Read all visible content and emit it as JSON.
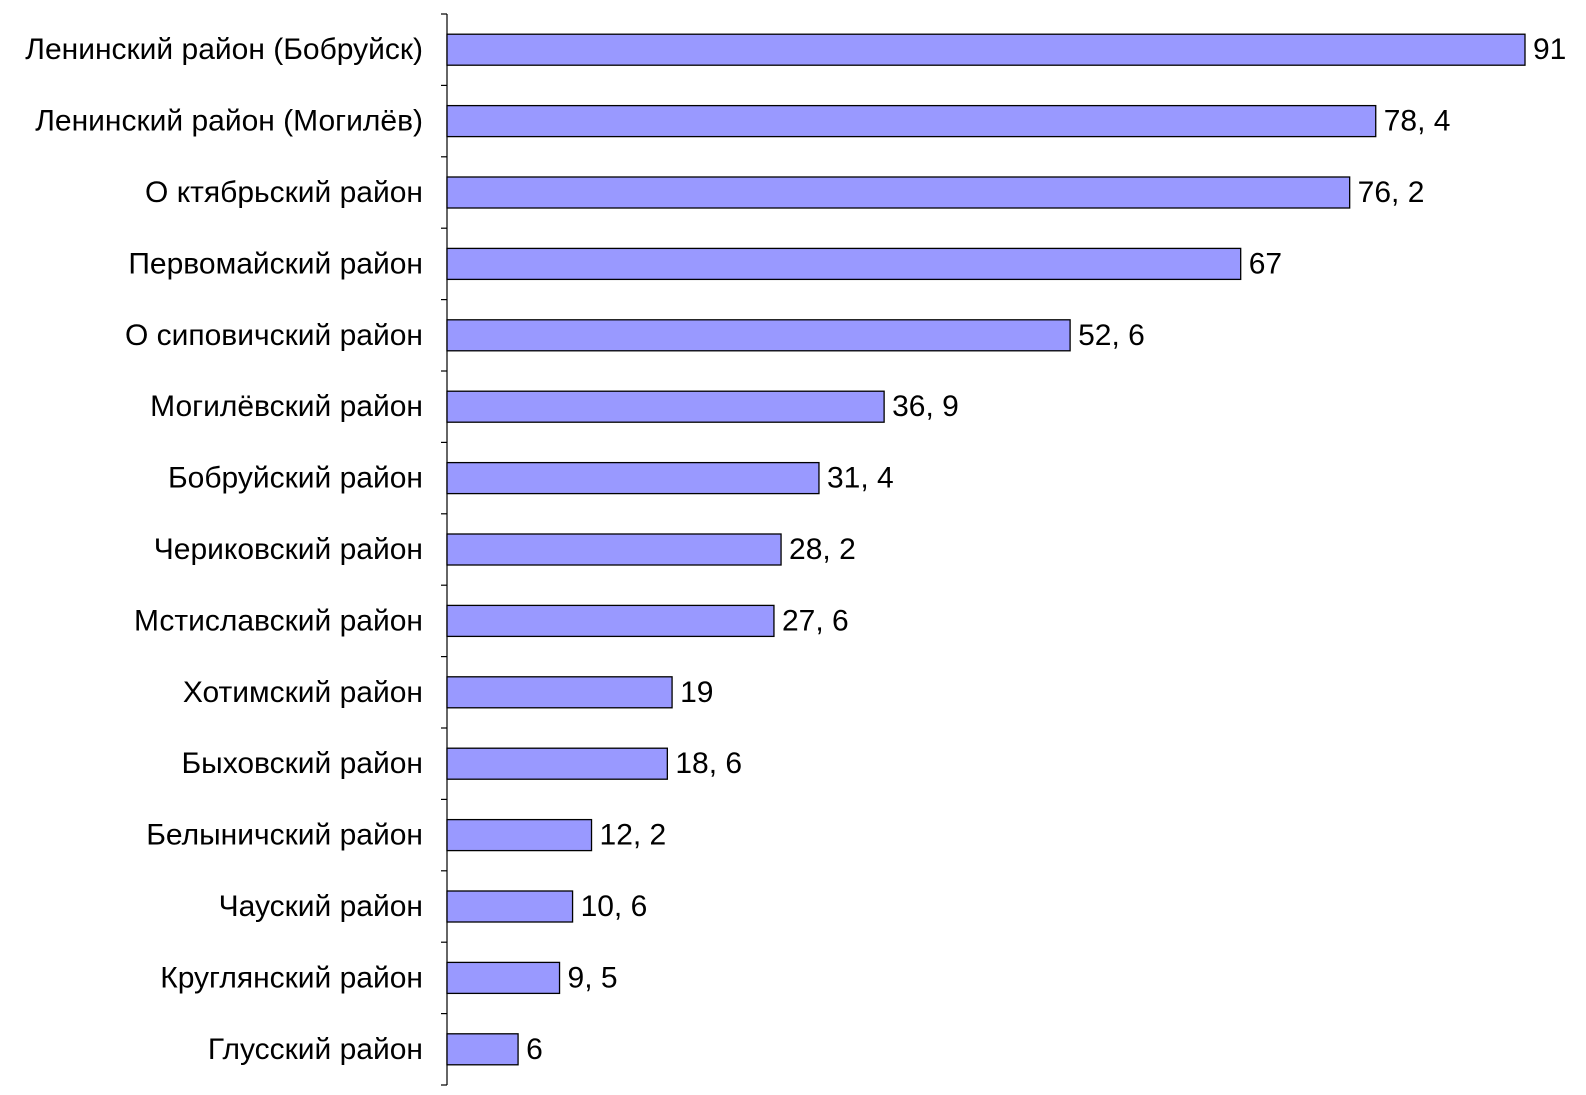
{
  "chart_data": {
    "type": "bar",
    "orientation": "horizontal",
    "title": "",
    "xlabel": "",
    "ylabel": "",
    "xlim": [
      0,
      91
    ],
    "grid": false,
    "legend": false,
    "categories": [
      "Ленинский район (Бобруйск)",
      "Ленинский район (Могилёв)",
      "О ктябрьский район",
      "Первомайский район",
      "О сиповичский район ",
      "Могилёвский район",
      "Бобруйский район",
      "Чериковский район",
      "Мстиславский район",
      "Хотимский район",
      "Быховский район",
      "Белыничский район",
      "Чауский район",
      "Круглянский район",
      "Глусский район "
    ],
    "values": [
      91,
      78.4,
      76.2,
      67,
      52.6,
      36.9,
      31.4,
      28.2,
      27.6,
      19,
      18.6,
      12.2,
      10.6,
      9.5,
      6
    ],
    "value_labels": [
      "91",
      "78, 4",
      "76, 2",
      "67",
      "52, 6",
      "36, 9",
      "31, 4",
      "28, 2",
      "27, 6",
      "19",
      "18, 6",
      "12, 2",
      "10, 6",
      "9, 5",
      "6"
    ],
    "colors": {
      "bar_fill": "#9999ff",
      "bar_stroke": "#000000",
      "axis": "#000000",
      "text": "#000000"
    }
  }
}
